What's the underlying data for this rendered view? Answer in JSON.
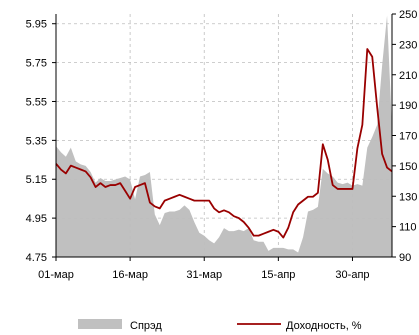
{
  "chart_data": {
    "type": "line",
    "dual_axis": true,
    "grid": true,
    "legend_position": "bottom",
    "x_ticks": [
      "01-мар",
      "16-мар",
      "31-мар",
      "15-апр",
      "30-апр"
    ],
    "left_axis": {
      "ylim": [
        4.75,
        6.0
      ],
      "ticks": [
        "4.75",
        "4.95",
        "5.15",
        "5.35",
        "5.55",
        "5.75",
        "5.95"
      ]
    },
    "right_axis": {
      "ylim": [
        90,
        250
      ],
      "ticks": [
        "90",
        "110",
        "130",
        "150",
        "170",
        "190",
        "210",
        "230",
        "250"
      ]
    },
    "series": [
      {
        "name": "Спрэд",
        "kind": "area",
        "axis": "right",
        "color": "#c0c0c0",
        "x": [
          0,
          1,
          2,
          3,
          4,
          5,
          6,
          7,
          8,
          9,
          10,
          11,
          12,
          13,
          14,
          15,
          16,
          17,
          18,
          19,
          20,
          21,
          22,
          23,
          24,
          25,
          26,
          27,
          28,
          29,
          30,
          31,
          32,
          33,
          34,
          35,
          36,
          37,
          38,
          39,
          40,
          41,
          42,
          43,
          44,
          45,
          46,
          47,
          48,
          49,
          50,
          51,
          52,
          53,
          54,
          55,
          56,
          57,
          58,
          59,
          60,
          61,
          62,
          63,
          64,
          65,
          66,
          67,
          68
        ],
        "values": [
          163,
          159,
          156,
          162,
          153,
          151,
          150,
          146,
          139,
          142,
          140,
          140,
          141,
          142,
          143,
          141,
          128,
          143,
          144,
          146,
          118,
          111,
          119,
          120,
          120,
          121,
          124,
          121,
          113,
          106,
          104,
          101,
          99,
          103,
          109,
          107,
          107,
          108,
          107,
          109,
          101,
          100,
          100,
          94,
          96,
          96,
          96,
          95,
          95,
          93,
          103,
          120,
          121,
          123,
          148,
          145,
          143,
          139,
          138,
          139,
          137,
          138,
          137,
          162,
          169,
          177,
          216,
          249,
          175
        ]
      },
      {
        "name": "Доходность, %",
        "kind": "line",
        "axis": "left",
        "color": "#990000",
        "x": [
          0,
          1,
          2,
          3,
          4,
          5,
          6,
          7,
          8,
          9,
          10,
          11,
          12,
          13,
          14,
          15,
          16,
          17,
          18,
          19,
          20,
          21,
          22,
          23,
          24,
          25,
          26,
          27,
          28,
          29,
          30,
          31,
          32,
          33,
          34,
          35,
          36,
          37,
          38,
          39,
          40,
          41,
          42,
          43,
          44,
          45,
          46,
          47,
          48,
          49,
          50,
          51,
          52,
          53,
          54,
          55,
          56,
          57,
          58,
          59,
          60,
          61,
          62,
          63,
          64,
          65,
          66,
          67,
          68
        ],
        "values": [
          5.23,
          5.2,
          5.18,
          5.22,
          5.21,
          5.2,
          5.19,
          5.16,
          5.11,
          5.13,
          5.11,
          5.12,
          5.12,
          5.13,
          5.09,
          5.05,
          5.11,
          5.12,
          5.13,
          5.03,
          5.01,
          5.0,
          5.04,
          5.05,
          5.06,
          5.07,
          5.06,
          5.05,
          5.04,
          5.04,
          5.04,
          5.04,
          5.0,
          4.98,
          4.99,
          4.98,
          4.96,
          4.95,
          4.93,
          4.9,
          4.86,
          4.86,
          4.87,
          4.88,
          4.89,
          4.88,
          4.85,
          4.9,
          4.98,
          5.02,
          5.04,
          5.06,
          5.06,
          5.08,
          5.33,
          5.25,
          5.12,
          5.1,
          5.1,
          5.1,
          5.1,
          5.31,
          5.43,
          5.82,
          5.78,
          5.52,
          5.28,
          5.21,
          5.19
        ]
      }
    ]
  }
}
